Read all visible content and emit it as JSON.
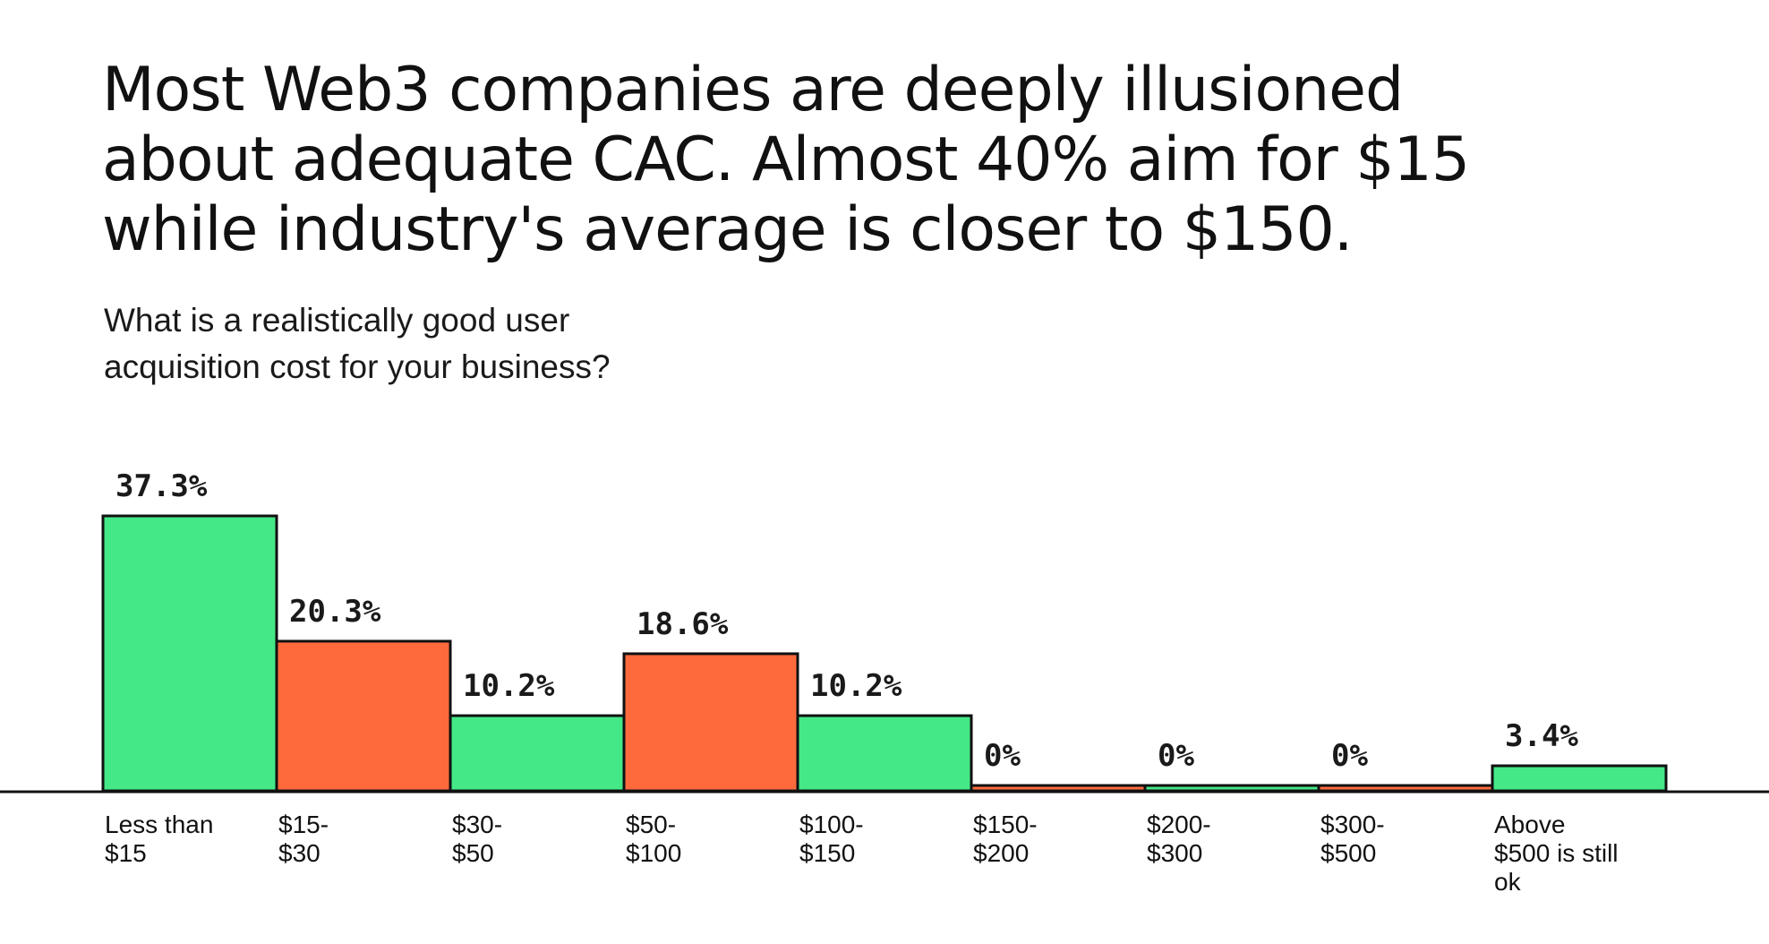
{
  "headline": {
    "line1": "Most Web3 companies are deeply illusioned",
    "line2": "about adequate CAC. Almost 40% aim for $15",
    "line3": "while industry's average is closer to $150."
  },
  "question": {
    "line1": "What is a realistically good user",
    "line2": "acquisition cost for your business?"
  },
  "colors": {
    "green": "#44E887",
    "orange": "#FF6A3D",
    "outline": "#111111"
  },
  "chart_data": {
    "type": "bar",
    "title": "What is a realistically good user acquisition cost for your business?",
    "categories": [
      [
        "Less than",
        "$15"
      ],
      [
        "$15-",
        "$30"
      ],
      [
        "$30-",
        "$50"
      ],
      [
        "$50-",
        "$100"
      ],
      [
        "$100-",
        "$150"
      ],
      [
        "$150-",
        "$200"
      ],
      [
        "$200-",
        "$300"
      ],
      [
        "$300-",
        "$500"
      ],
      [
        "Above",
        "$500 is still",
        "ok"
      ]
    ],
    "values": [
      37.3,
      20.3,
      10.2,
      18.6,
      10.2,
      0,
      0,
      0,
      3.4
    ],
    "value_labels": [
      "37.3%",
      "20.3%",
      "10.2%",
      "18.6%",
      "10.2%",
      "0%",
      "0%",
      "0%",
      "3.4%"
    ],
    "bar_colors": [
      "green",
      "orange",
      "green",
      "orange",
      "green",
      "orange",
      "green",
      "orange",
      "green"
    ],
    "unit": "%",
    "grid": false,
    "legend": "none"
  }
}
